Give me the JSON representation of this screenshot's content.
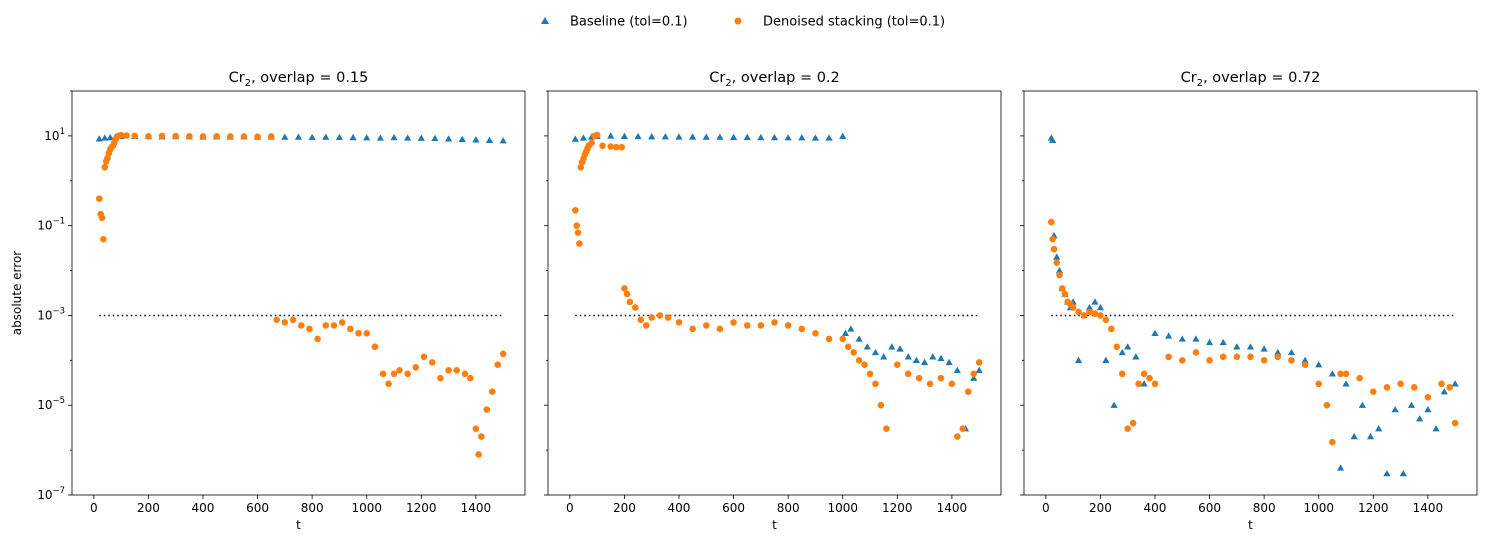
{
  "legend": {
    "placement": "top-center",
    "entries": [
      {
        "label": "Baseline (tol=0.1)",
        "marker": "triangle",
        "color": "#1f77b4"
      },
      {
        "label": "Denoised stacking (tol=0.1)",
        "marker": "circle",
        "color": "#ff7f0e"
      }
    ]
  },
  "chart_data": [
    {
      "type": "scatter",
      "title_main": "Cr",
      "title_sub": "2",
      "title_rest": ", overlap = 0.15",
      "xlabel": "t",
      "ylabel": "absolute error",
      "xlim": [
        -80,
        1580
      ],
      "ylim": [
        1e-07,
        100
      ],
      "yscale": "log",
      "xticks": [
        0,
        200,
        400,
        600,
        800,
        1000,
        1200,
        1400
      ],
      "xtick_labels": [
        "0",
        "200",
        "400",
        "600",
        "800",
        "1000",
        "1200",
        "1400"
      ],
      "yticks": [
        1e-07,
        1e-05,
        0.001,
        0.1,
        10
      ],
      "ytick_labels": [
        {
          "base": "10",
          "exp": "−7"
        },
        {
          "base": "10",
          "exp": "−5"
        },
        {
          "base": "10",
          "exp": "−3"
        },
        {
          "base": "10",
          "exp": "−1"
        },
        {
          "base": "10",
          "exp": "1"
        }
      ],
      "tolerance_line": {
        "y": 0.001,
        "x": [
          20,
          1500
        ],
        "style": "dotted"
      },
      "series": [
        {
          "name": "Baseline (tol=0.1)",
          "marker": "triangle",
          "color": "#1f77b4",
          "x": [
            20,
            40,
            60,
            80,
            100,
            150,
            200,
            250,
            300,
            350,
            400,
            450,
            500,
            550,
            600,
            650,
            700,
            750,
            800,
            850,
            900,
            950,
            1000,
            1050,
            1100,
            1150,
            1200,
            1250,
            1300,
            1350,
            1400,
            1450,
            1500
          ],
          "y": [
            8.6,
            9.0,
            9.2,
            9.5,
            9.7,
            9.8,
            9.7,
            9.6,
            9.7,
            9.6,
            9.5,
            9.6,
            9.5,
            9.6,
            9.5,
            9.5,
            9.4,
            9.4,
            9.3,
            9.4,
            9.3,
            9.2,
            9.1,
            9.0,
            9.2,
            9.0,
            8.9,
            8.8,
            8.6,
            8.4,
            8.2,
            8.0,
            7.8
          ]
        },
        {
          "name": "Denoised stacking (tol=0.1)",
          "marker": "circle",
          "color": "#ff7f0e",
          "x": [
            20,
            25,
            30,
            35,
            40,
            45,
            50,
            55,
            60,
            65,
            70,
            75,
            80,
            90,
            100,
            120,
            150,
            200,
            250,
            300,
            350,
            400,
            450,
            500,
            550,
            600,
            650,
            670,
            700,
            730,
            760,
            790,
            820,
            850,
            880,
            910,
            940,
            970,
            1000,
            1030,
            1060,
            1080,
            1100,
            1120,
            1150,
            1180,
            1210,
            1240,
            1270,
            1300,
            1330,
            1360,
            1380,
            1400,
            1410,
            1420,
            1440,
            1460,
            1480,
            1500
          ],
          "y": [
            0.4,
            0.18,
            0.15,
            0.05,
            2.0,
            2.7,
            3.2,
            4.1,
            5.0,
            5.6,
            6.0,
            7.0,
            8.5,
            10.0,
            10.4,
            10.2,
            10.0,
            9.8,
            10.0,
            9.9,
            9.8,
            9.7,
            9.8,
            9.7,
            9.7,
            9.6,
            9.7,
            0.0008,
            0.0007,
            0.0008,
            0.0006,
            0.0005,
            0.0003,
            0.0006,
            0.0006,
            0.0007,
            0.0005,
            0.0004,
            0.0004,
            0.0002,
            5e-05,
            3e-05,
            5e-05,
            6e-05,
            5e-05,
            7e-05,
            0.00012,
            9e-05,
            4e-05,
            6e-05,
            6e-05,
            5e-05,
            4e-05,
            3e-06,
            8e-07,
            2e-06,
            8e-06,
            2e-05,
            8e-05,
            0.00014
          ]
        }
      ]
    },
    {
      "type": "scatter",
      "title_main": "Cr",
      "title_sub": "2",
      "title_rest": ", overlap = 0.2",
      "xlabel": "t",
      "ylabel": "",
      "xlim": [
        -80,
        1580
      ],
      "ylim": [
        1e-07,
        100
      ],
      "yscale": "log",
      "xticks": [
        0,
        200,
        400,
        600,
        800,
        1000,
        1200,
        1400
      ],
      "xtick_labels": [
        "0",
        "200",
        "400",
        "600",
        "800",
        "1000",
        "1200",
        "1400"
      ],
      "tolerance_line": {
        "y": 0.001,
        "x": [
          20,
          1500
        ],
        "style": "dotted"
      },
      "series": [
        {
          "name": "Baseline (tol=0.1)",
          "marker": "triangle",
          "color": "#1f77b4",
          "x": [
            20,
            50,
            80,
            100,
            150,
            200,
            250,
            300,
            350,
            400,
            450,
            500,
            550,
            600,
            650,
            700,
            750,
            800,
            850,
            900,
            950,
            1000,
            1010,
            1030,
            1060,
            1090,
            1120,
            1150,
            1180,
            1210,
            1240,
            1270,
            1300,
            1330,
            1360,
            1390,
            1420,
            1450,
            1480,
            1500
          ],
          "y": [
            8.5,
            9.0,
            9.5,
            9.8,
            10.0,
            9.8,
            9.7,
            9.6,
            9.6,
            9.5,
            9.5,
            9.4,
            9.4,
            9.3,
            9.3,
            9.2,
            9.2,
            9.1,
            9.1,
            9.0,
            9.0,
            9.8,
            0.0004,
            0.0005,
            0.0003,
            0.0002,
            0.00015,
            0.00012,
            0.0002,
            0.00018,
            0.00012,
            0.0001,
            9e-05,
            0.00012,
            0.00011,
            9e-05,
            6e-05,
            3e-06,
            4e-05,
            6e-05
          ]
        },
        {
          "name": "Denoised stacking (tol=0.1)",
          "marker": "circle",
          "color": "#ff7f0e",
          "x": [
            20,
            25,
            30,
            35,
            40,
            45,
            50,
            55,
            60,
            65,
            70,
            80,
            90,
            100,
            120,
            150,
            170,
            190,
            200,
            210,
            220,
            240,
            260,
            280,
            300,
            330,
            360,
            400,
            450,
            500,
            550,
            600,
            650,
            700,
            750,
            800,
            850,
            900,
            950,
            1000,
            1020,
            1040,
            1060,
            1080,
            1100,
            1120,
            1140,
            1160,
            1200,
            1240,
            1280,
            1320,
            1360,
            1400,
            1420,
            1440,
            1460,
            1480,
            1500
          ],
          "y": [
            0.22,
            0.1,
            0.07,
            0.04,
            2.0,
            2.6,
            3.1,
            3.8,
            4.5,
            5.3,
            6.1,
            7.0,
            10.0,
            10.5,
            6.0,
            5.8,
            5.6,
            5.6,
            0.004,
            0.003,
            0.002,
            0.0015,
            0.0008,
            0.0006,
            0.0009,
            0.001,
            0.0009,
            0.0007,
            0.0005,
            0.0006,
            0.0005,
            0.0007,
            0.0006,
            0.0006,
            0.0007,
            0.0006,
            0.0005,
            0.0004,
            0.0003,
            0.0003,
            0.0002,
            0.00015,
            0.0001,
            8e-05,
            5e-05,
            3e-05,
            1e-05,
            3e-06,
            8e-05,
            5e-05,
            4e-05,
            3e-05,
            4e-05,
            3e-05,
            2e-06,
            3e-06,
            2e-05,
            5e-05,
            9e-05
          ]
        }
      ]
    },
    {
      "type": "scatter",
      "title_main": "Cr",
      "title_sub": "2",
      "title_rest": ", overlap = 0.72",
      "xlabel": "t",
      "ylabel": "",
      "xlim": [
        -80,
        1580
      ],
      "ylim": [
        1e-07,
        100
      ],
      "yscale": "log",
      "xticks": [
        0,
        200,
        400,
        600,
        800,
        1000,
        1200,
        1400
      ],
      "xtick_labels": [
        "0",
        "200",
        "400",
        "600",
        "800",
        "1000",
        "1200",
        "1400"
      ],
      "tolerance_line": {
        "y": 0.001,
        "x": [
          20,
          1500
        ],
        "style": "dotted"
      },
      "series": [
        {
          "name": "Baseline (tol=0.1)",
          "marker": "triangle",
          "color": "#1f77b4",
          "x": [
            20,
            25,
            30,
            40,
            50,
            60,
            70,
            80,
            90,
            100,
            120,
            140,
            160,
            180,
            200,
            220,
            250,
            280,
            300,
            330,
            360,
            400,
            450,
            500,
            550,
            600,
            650,
            700,
            750,
            800,
            850,
            900,
            950,
            1000,
            1050,
            1080,
            1100,
            1130,
            1160,
            1190,
            1220,
            1250,
            1280,
            1310,
            1340,
            1370,
            1400,
            1430,
            1460,
            1500
          ],
          "y": [
            9.0,
            8.0,
            0.06,
            0.02,
            0.01,
            0.004,
            0.003,
            0.002,
            0.0015,
            0.002,
            0.0001,
            0.001,
            0.0015,
            0.002,
            0.0015,
            0.0001,
            1e-05,
            0.00015,
            0.0002,
            0.00012,
            3e-05,
            0.0004,
            0.00035,
            0.0003,
            0.0003,
            0.00025,
            0.00025,
            0.0002,
            0.0002,
            0.00018,
            0.00015,
            0.00015,
            0.0001,
            8e-05,
            5e-05,
            4e-07,
            3e-05,
            2e-06,
            1e-05,
            2e-06,
            3e-06,
            3e-07,
            8e-06,
            3e-07,
            1e-05,
            5e-06,
            8e-06,
            3e-06,
            2e-05,
            3e-05
          ]
        },
        {
          "name": "Denoised stacking (tol=0.1)",
          "marker": "circle",
          "color": "#ff7f0e",
          "x": [
            20,
            25,
            30,
            40,
            50,
            60,
            70,
            80,
            90,
            100,
            120,
            140,
            160,
            180,
            200,
            220,
            240,
            260,
            280,
            300,
            320,
            340,
            360,
            380,
            400,
            450,
            500,
            550,
            600,
            650,
            700,
            750,
            800,
            850,
            900,
            950,
            1000,
            1030,
            1050,
            1080,
            1100,
            1150,
            1200,
            1250,
            1300,
            1350,
            1400,
            1450,
            1480,
            1500
          ],
          "y": [
            0.12,
            0.05,
            0.03,
            0.015,
            0.008,
            0.004,
            0.003,
            0.002,
            0.0018,
            0.0015,
            0.0012,
            0.001,
            0.0012,
            0.0011,
            0.001,
            0.0008,
            0.0005,
            0.0002,
            5e-05,
            3e-06,
            4e-06,
            3e-05,
            5e-05,
            4e-05,
            3e-05,
            0.00012,
            0.0001,
            0.00015,
            0.0001,
            0.00012,
            0.00012,
            0.00012,
            0.0001,
            0.00012,
            0.0001,
            8e-05,
            3e-05,
            1e-05,
            1.5e-06,
            5e-05,
            5e-05,
            4e-05,
            2e-05,
            2.5e-05,
            3e-05,
            2.5e-05,
            1.5e-05,
            3e-05,
            2.5e-05,
            4e-06
          ]
        }
      ]
    }
  ]
}
